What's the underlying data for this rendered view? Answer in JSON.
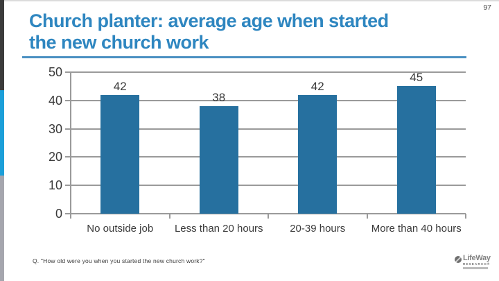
{
  "page_number": "97",
  "title_lines": [
    "Church planter: average age when started",
    "the new church work"
  ],
  "footnote": "Q. \"How old were you when you started the new church work?\"",
  "logo": {
    "name": "LifeWay",
    "sub": "RESEARCH®"
  },
  "colors": {
    "title": "#2e86c0",
    "rule": "#4a90c2",
    "bar": "#26709f",
    "grid": "#9a9a9a",
    "axis_text": "#3a3a3a",
    "strip_dark": "#3b3b3b",
    "strip_blue": "#1c9fd9",
    "strip_gray": "#a5a6ae"
  },
  "chart_data": {
    "type": "bar",
    "title": "",
    "xlabel": "",
    "ylabel": "",
    "categories": [
      "No outside job",
      "Less than 20 hours",
      "20-39 hours",
      "More than 40 hours"
    ],
    "values": [
      42,
      38,
      42,
      45
    ],
    "ylim": [
      0,
      50
    ],
    "ytick_step": 10,
    "grid": true,
    "legend": false
  }
}
